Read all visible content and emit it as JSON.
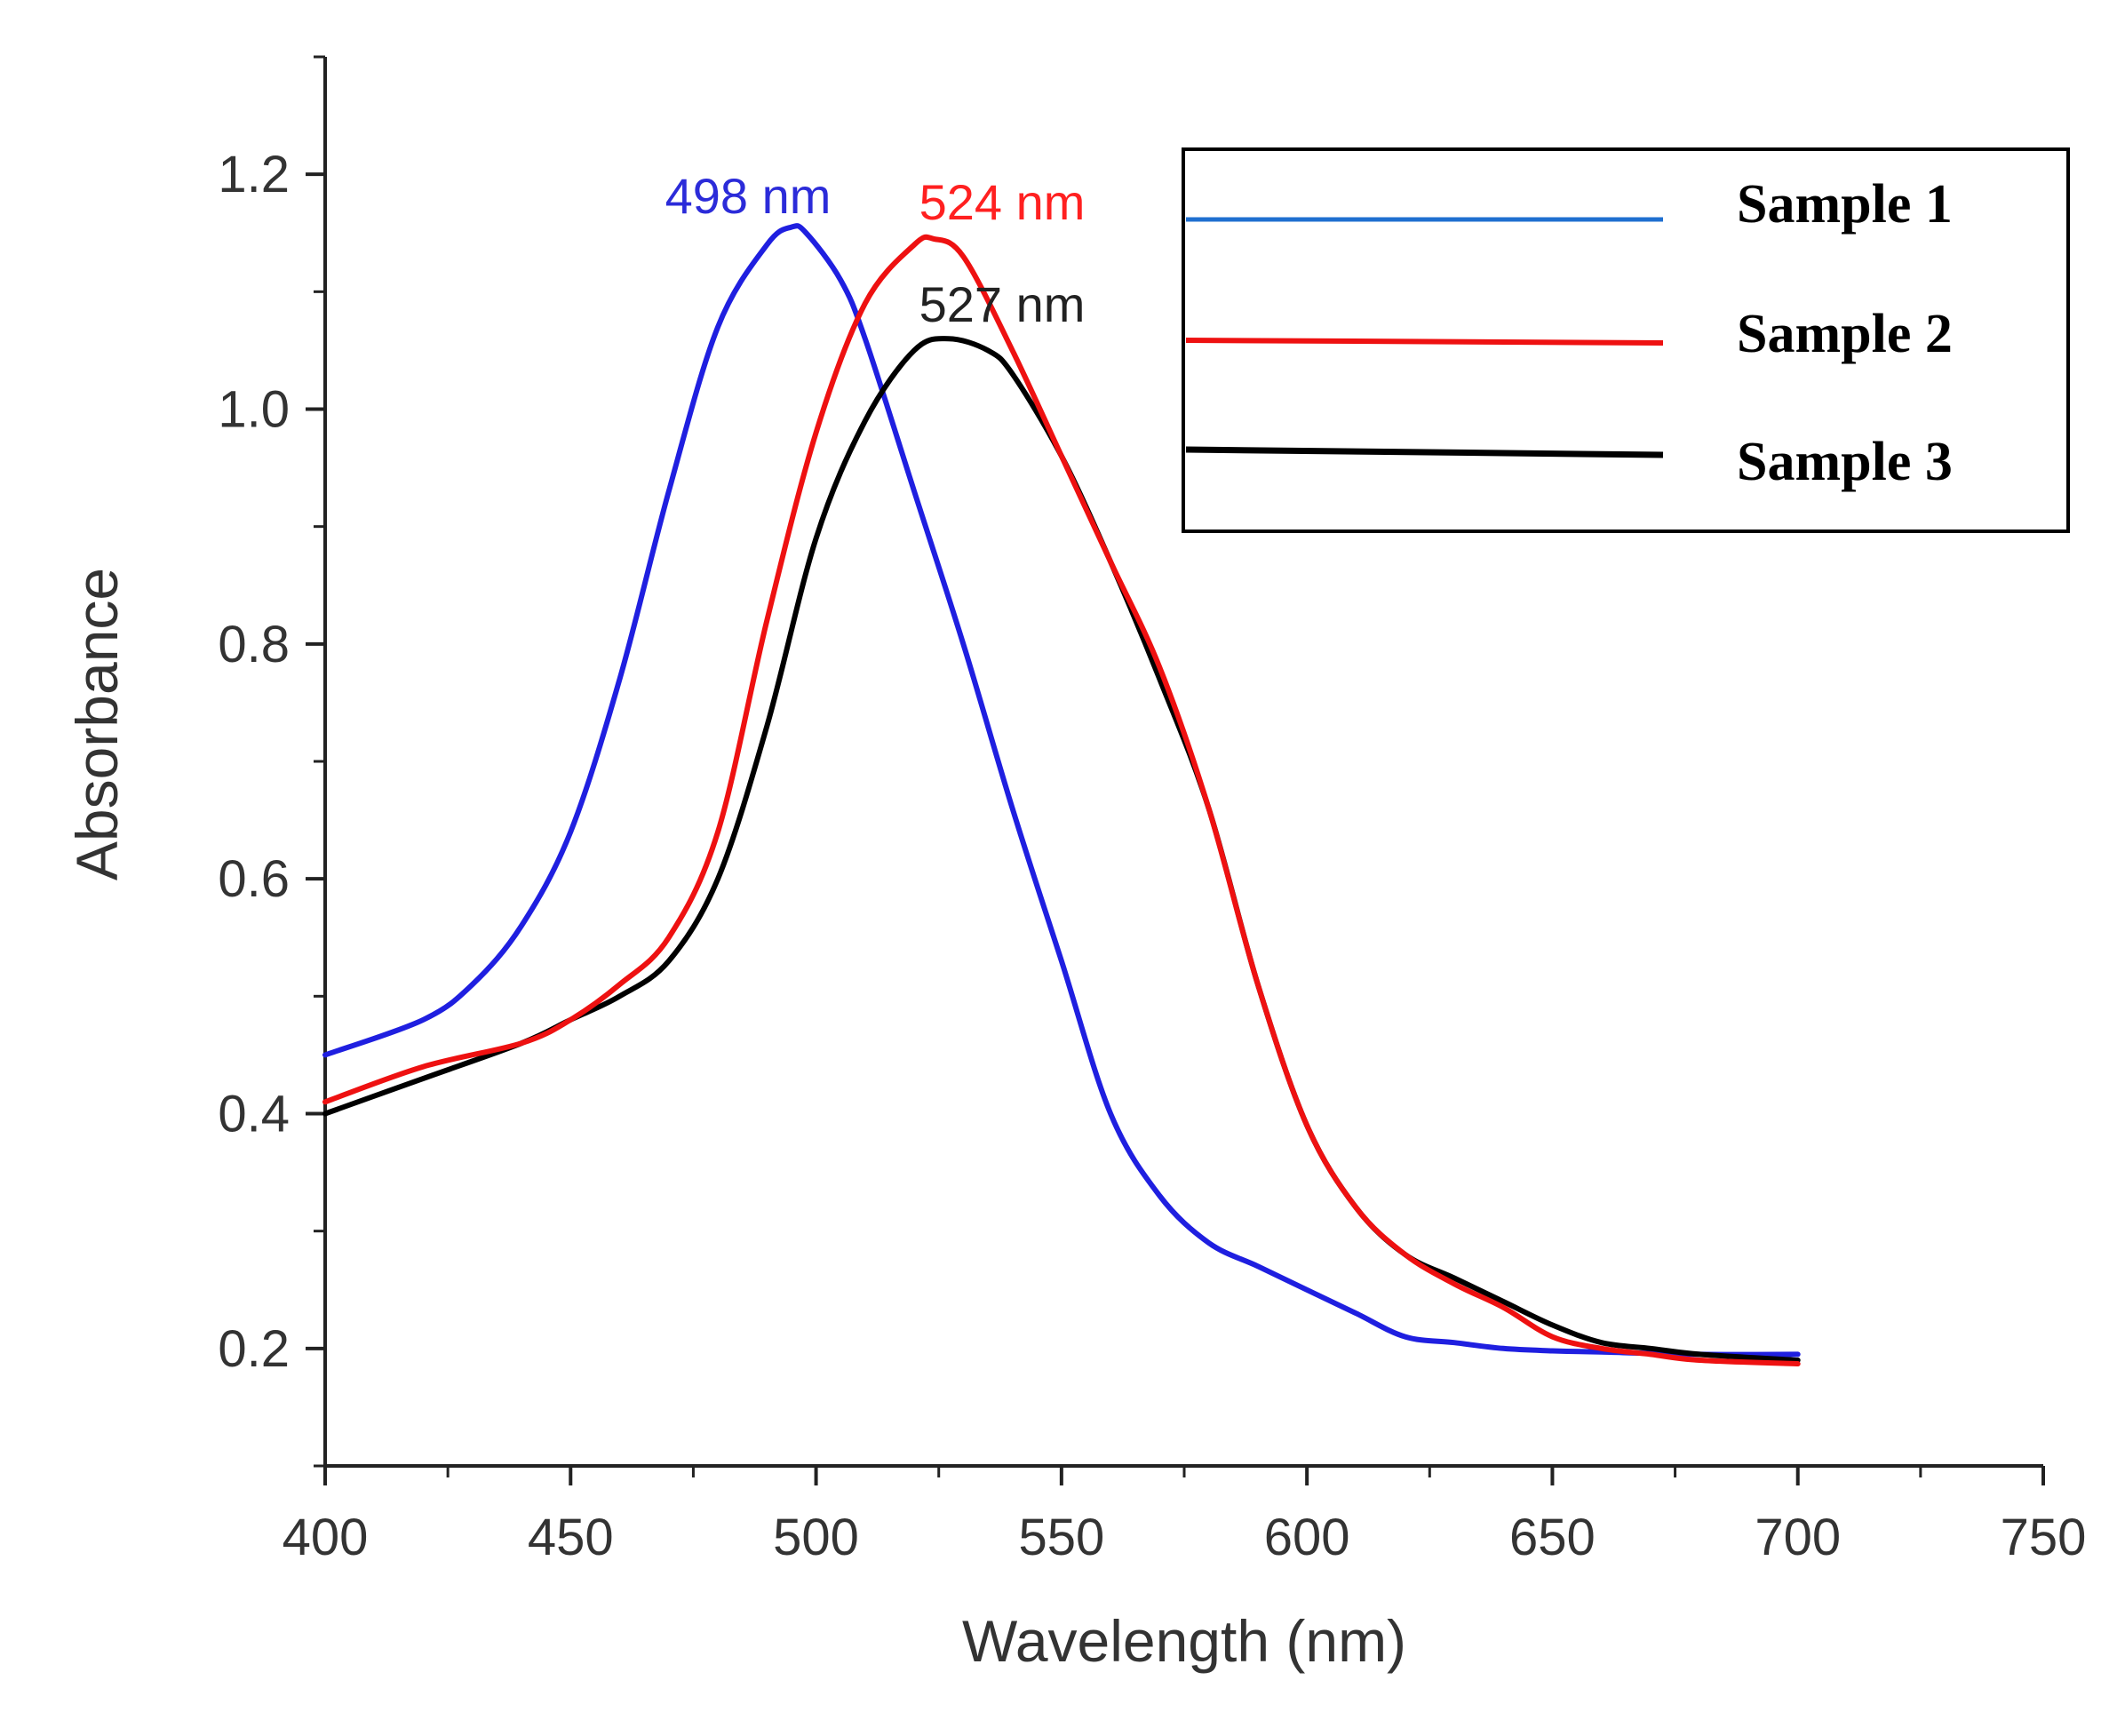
{
  "chart_data": {
    "type": "line",
    "title": "",
    "xlabel": "Wavelength (nm)",
    "ylabel": "Absorbance",
    "xlim": [
      400,
      750
    ],
    "ylim": [
      0.1,
      1.3
    ],
    "xticks": [
      "400",
      "450",
      "500",
      "550",
      "600",
      "650",
      "700",
      "750"
    ],
    "yticks": [
      "0.2",
      "0.4",
      "0.6",
      "0.8",
      "1.0",
      "1.2"
    ],
    "grid": false,
    "legend": {
      "position": "top-right",
      "entries": [
        "Sample 1",
        "Sample 2",
        "Sample 3"
      ]
    },
    "annotations": [
      {
        "text": "498 nm",
        "series": "Sample 1",
        "x": 498,
        "y": 1.15,
        "color": "#2b2bd9"
      },
      {
        "text": "524 nm",
        "series": "Sample 2",
        "x": 524,
        "y": 1.14,
        "color": "#ff2020"
      },
      {
        "text": "527 nm",
        "series": "Sample 3",
        "x": 527,
        "y": 1.06,
        "color": "#222222"
      }
    ],
    "series": [
      {
        "name": "Sample 1",
        "color": "#1f1fe0",
        "legend_color": "#1f6fd0",
        "x": [
          400,
          420,
          430,
          440,
          450,
          460,
          470,
          480,
          490,
          495,
          498,
          505,
          510,
          520,
          530,
          540,
          550,
          560,
          570,
          580,
          590,
          600,
          610,
          620,
          630,
          640,
          650,
          660,
          680,
          700
        ],
        "y": [
          0.45,
          0.48,
          0.51,
          0.56,
          0.64,
          0.77,
          0.93,
          1.07,
          1.14,
          1.155,
          1.15,
          1.11,
          1.06,
          0.93,
          0.8,
          0.66,
          0.53,
          0.4,
          0.33,
          0.29,
          0.27,
          0.25,
          0.23,
          0.21,
          0.205,
          0.2,
          0.198,
          0.197,
          0.195,
          0.195
        ]
      },
      {
        "name": "Sample 2",
        "color": "#ee1111",
        "legend_color": "#ee1111",
        "x": [
          400,
          420,
          440,
          450,
          460,
          470,
          480,
          490,
          500,
          510,
          520,
          524,
          530,
          540,
          550,
          560,
          570,
          580,
          590,
          600,
          610,
          620,
          630,
          640,
          650,
          660,
          670,
          680,
          700
        ],
        "y": [
          0.41,
          0.44,
          0.46,
          0.48,
          0.51,
          0.55,
          0.64,
          0.82,
          0.98,
          1.09,
          1.14,
          1.145,
          1.13,
          1.05,
          0.96,
          0.87,
          0.78,
          0.66,
          0.51,
          0.39,
          0.32,
          0.28,
          0.255,
          0.235,
          0.21,
          0.2,
          0.195,
          0.19,
          0.187
        ]
      },
      {
        "name": "Sample 3",
        "color": "#000000",
        "legend_color": "#000000",
        "x": [
          400,
          420,
          440,
          450,
          460,
          470,
          480,
          490,
          500,
          510,
          520,
          527,
          535,
          540,
          550,
          560,
          570,
          580,
          590,
          600,
          610,
          620,
          630,
          640,
          650,
          660,
          670,
          680,
          700
        ],
        "y": [
          0.4,
          0.43,
          0.46,
          0.48,
          0.5,
          0.53,
          0.6,
          0.73,
          0.89,
          0.99,
          1.05,
          1.06,
          1.05,
          1.03,
          0.96,
          0.87,
          0.77,
          0.66,
          0.51,
          0.39,
          0.32,
          0.28,
          0.26,
          0.24,
          0.22,
          0.205,
          0.2,
          0.195,
          0.19
        ]
      }
    ]
  }
}
